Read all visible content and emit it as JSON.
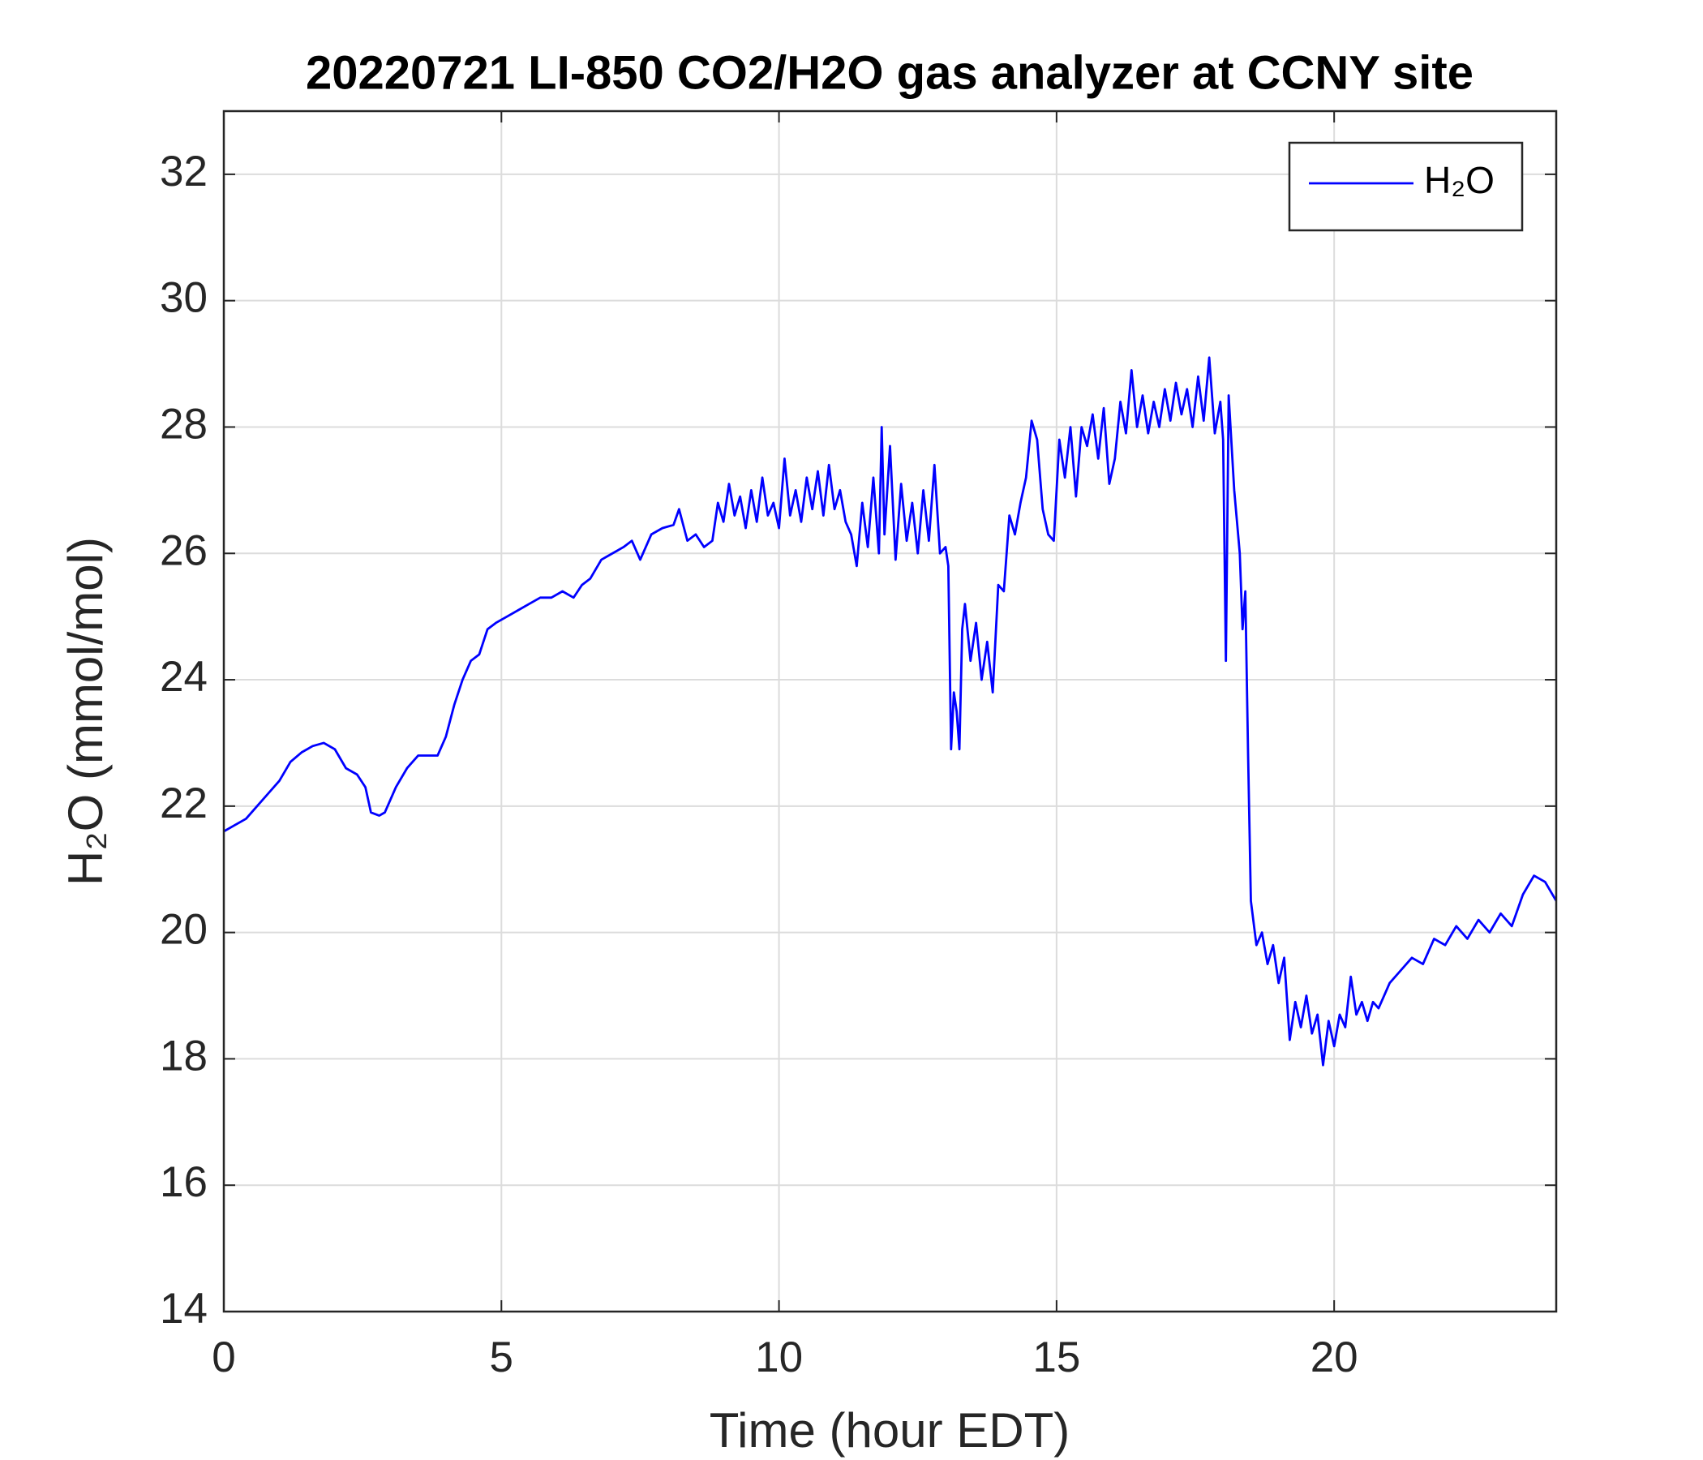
{
  "chart_data": {
    "type": "line",
    "title": "20220721 LI-850 CO2/H2O gas analyzer at CCNY site",
    "xlabel": "Time (hour EDT)",
    "ylabel": "H₂O (mmol/mol)",
    "xlim": [
      0,
      24
    ],
    "xticks": [
      0,
      5,
      10,
      15,
      20
    ],
    "ylim": [
      14,
      33
    ],
    "yticks": [
      14,
      16,
      18,
      20,
      22,
      24,
      26,
      28,
      30,
      32
    ],
    "grid": true,
    "legend": "upper right",
    "x": [
      0,
      0.2,
      0.4,
      0.6,
      0.8,
      1.0,
      1.2,
      1.4,
      1.6,
      1.8,
      2.0,
      2.2,
      2.4,
      2.55,
      2.65,
      2.8,
      2.9,
      3.1,
      3.3,
      3.5,
      3.7,
      3.85,
      4.0,
      4.15,
      4.3,
      4.45,
      4.6,
      4.75,
      4.9,
      5.1,
      5.3,
      5.5,
      5.7,
      5.9,
      6.1,
      6.3,
      6.45,
      6.6,
      6.8,
      7.0,
      7.2,
      7.35,
      7.5,
      7.7,
      7.9,
      8.1,
      8.2,
      8.35,
      8.5,
      8.65,
      8.8,
      8.9,
      9.0,
      9.1,
      9.2,
      9.3,
      9.4,
      9.5,
      9.6,
      9.7,
      9.8,
      9.9,
      10.0,
      10.1,
      10.2,
      10.3,
      10.4,
      10.5,
      10.6,
      10.7,
      10.8,
      10.9,
      11.0,
      11.1,
      11.2,
      11.3,
      11.4,
      11.5,
      11.6,
      11.7,
      11.8,
      11.85,
      11.9,
      12.0,
      12.1,
      12.2,
      12.3,
      12.4,
      12.5,
      12.6,
      12.7,
      12.8,
      12.9,
      13.0,
      13.05,
      13.1,
      13.15,
      13.2,
      13.25,
      13.3,
      13.35,
      13.45,
      13.55,
      13.65,
      13.75,
      13.85,
      13.95,
      14.05,
      14.15,
      14.25,
      14.35,
      14.45,
      14.55,
      14.65,
      14.75,
      14.85,
      14.95,
      15.05,
      15.15,
      15.25,
      15.35,
      15.45,
      15.55,
      15.65,
      15.75,
      15.85,
      15.95,
      16.05,
      16.15,
      16.25,
      16.35,
      16.45,
      16.55,
      16.65,
      16.75,
      16.85,
      16.95,
      17.05,
      17.15,
      17.25,
      17.35,
      17.45,
      17.55,
      17.65,
      17.75,
      17.85,
      17.95,
      18.0,
      18.05,
      18.1,
      18.2,
      18.3,
      18.35,
      18.4,
      18.45,
      18.5,
      18.6,
      18.7,
      18.8,
      18.9,
      19.0,
      19.1,
      19.2,
      19.3,
      19.4,
      19.5,
      19.6,
      19.7,
      19.8,
      19.9,
      20.0,
      20.1,
      20.2,
      20.3,
      20.4,
      20.5,
      20.6,
      20.7,
      20.8,
      20.9,
      21.0,
      21.2,
      21.4,
      21.6,
      21.8,
      22.0,
      22.2,
      22.4,
      22.6,
      22.8,
      23.0,
      23.2,
      23.4,
      23.6,
      23.8,
      24.0
    ],
    "series": [
      {
        "name": "H₂O",
        "color": "#0000ff",
        "values": [
          21.6,
          21.7,
          21.8,
          22.0,
          22.2,
          22.4,
          22.7,
          22.85,
          22.95,
          23.0,
          22.9,
          22.6,
          22.5,
          22.3,
          21.9,
          21.85,
          21.9,
          22.3,
          22.6,
          22.8,
          22.8,
          22.8,
          23.1,
          23.6,
          24.0,
          24.3,
          24.4,
          24.8,
          24.9,
          25.0,
          25.1,
          25.2,
          25.3,
          25.3,
          25.4,
          25.3,
          25.5,
          25.6,
          25.9,
          26.0,
          26.1,
          26.2,
          25.9,
          26.3,
          26.4,
          26.45,
          26.7,
          26.2,
          26.3,
          26.1,
          26.2,
          26.8,
          26.5,
          27.1,
          26.6,
          26.9,
          26.4,
          27.0,
          26.5,
          27.2,
          26.6,
          26.8,
          26.4,
          27.5,
          26.6,
          27.0,
          26.5,
          27.2,
          26.7,
          27.3,
          26.6,
          27.4,
          26.7,
          27.0,
          26.5,
          26.3,
          25.8,
          26.8,
          26.1,
          27.2,
          26.0,
          28.0,
          26.3,
          27.7,
          25.9,
          27.1,
          26.2,
          26.8,
          26.0,
          27.0,
          26.2,
          27.4,
          26.0,
          26.1,
          25.8,
          22.9,
          23.8,
          23.5,
          22.9,
          24.8,
          25.2,
          24.3,
          24.9,
          24.0,
          24.6,
          23.8,
          25.5,
          25.4,
          26.6,
          26.3,
          26.8,
          27.2,
          28.1,
          27.8,
          26.7,
          26.3,
          26.2,
          27.8,
          27.2,
          28.0,
          26.9,
          28.0,
          27.7,
          28.2,
          27.5,
          28.3,
          27.1,
          27.5,
          28.4,
          27.9,
          28.9,
          28.0,
          28.5,
          27.9,
          28.4,
          28.0,
          28.6,
          28.1,
          28.7,
          28.2,
          28.6,
          28.0,
          28.8,
          28.1,
          29.1,
          27.9,
          28.4,
          27.8,
          24.3,
          28.5,
          27.0,
          26.0,
          24.8,
          25.4,
          22.8,
          20.5,
          19.8,
          20.0,
          19.5,
          19.8,
          19.2,
          19.6,
          18.3,
          18.9,
          18.5,
          19.0,
          18.4,
          18.7,
          17.9,
          18.6,
          18.2,
          18.7,
          18.5,
          19.3,
          18.7,
          18.9,
          18.6,
          18.9,
          18.8,
          19.0,
          19.2,
          19.4,
          19.6,
          19.5,
          19.9,
          19.8,
          20.1,
          19.9,
          20.2,
          20.0,
          20.3,
          20.1,
          20.6,
          20.9,
          20.8,
          20.5
        ]
      }
    ]
  }
}
